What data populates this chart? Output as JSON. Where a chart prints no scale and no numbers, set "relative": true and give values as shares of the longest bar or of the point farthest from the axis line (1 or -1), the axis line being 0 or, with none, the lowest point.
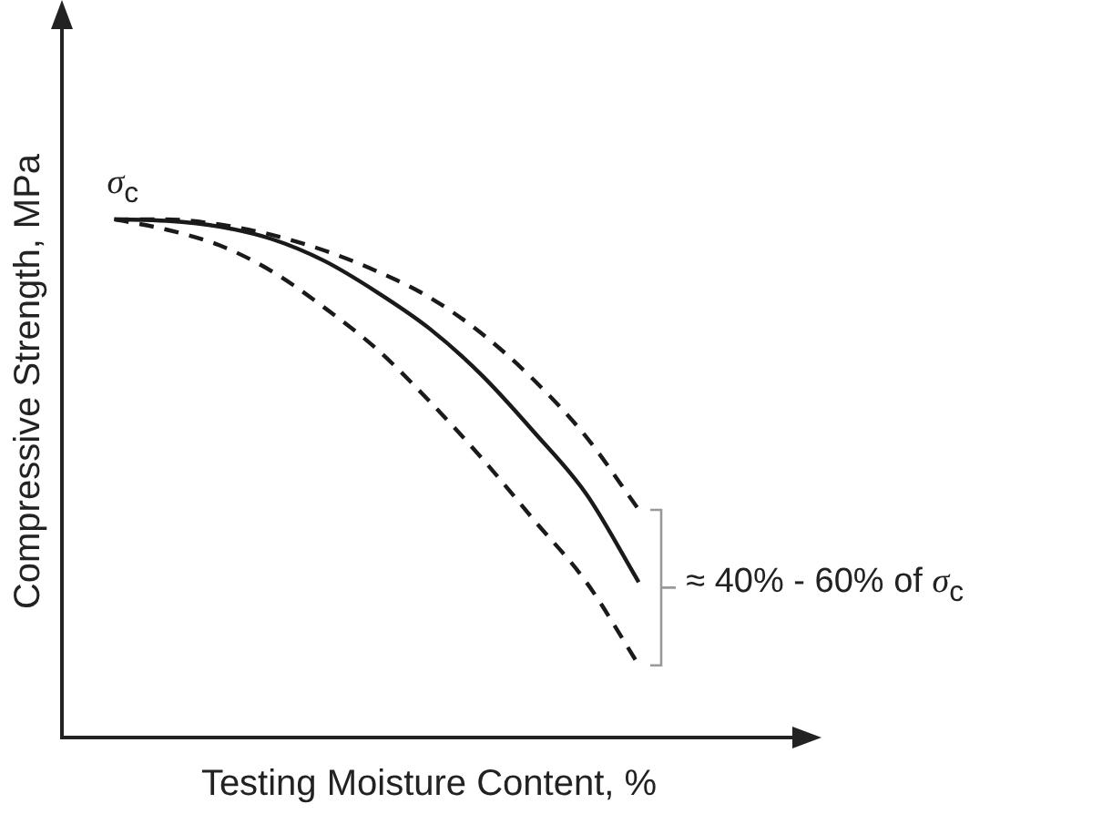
{
  "chart_data": {
    "type": "line",
    "xlabel": "Testing Moisture Content, %",
    "ylabel": "Compressive Strength, MPa",
    "relative": true,
    "grid": false,
    "legend": false,
    "tick_labels": false,
    "marker": "none",
    "categories": [
      null,
      null,
      null,
      null,
      null,
      null,
      null,
      null,
      null,
      null,
      null,
      null,
      null,
      null,
      null
    ],
    "series": [
      {
        "color": "#1a1a1a",
        "line_style": "solid",
        "values": [
          null,
          1.0,
          0.997,
          0.986,
          0.962,
          0.92,
          0.86,
          0.79,
          0.7,
          0.59,
          0.47,
          0.3,
          null,
          null,
          null
        ]
      },
      {
        "color": "#1a1a1a",
        "line_style": "dashed",
        "values": [
          null,
          1.0,
          1.0,
          0.99,
          0.97,
          0.94,
          0.9,
          0.85,
          0.78,
          0.69,
          0.58,
          0.44,
          null,
          null,
          null
        ]
      },
      {
        "color": "#1a1a1a",
        "line_style": "dashed",
        "values": [
          null,
          1.0,
          0.98,
          0.95,
          0.9,
          0.83,
          0.75,
          0.65,
          0.54,
          0.42,
          0.3,
          0.14,
          null,
          null,
          null
        ]
      }
    ],
    "annotations": [
      "σ$_{c}$",
      "≈ 40% - 60% of σ$_{c}$"
    ]
  }
}
